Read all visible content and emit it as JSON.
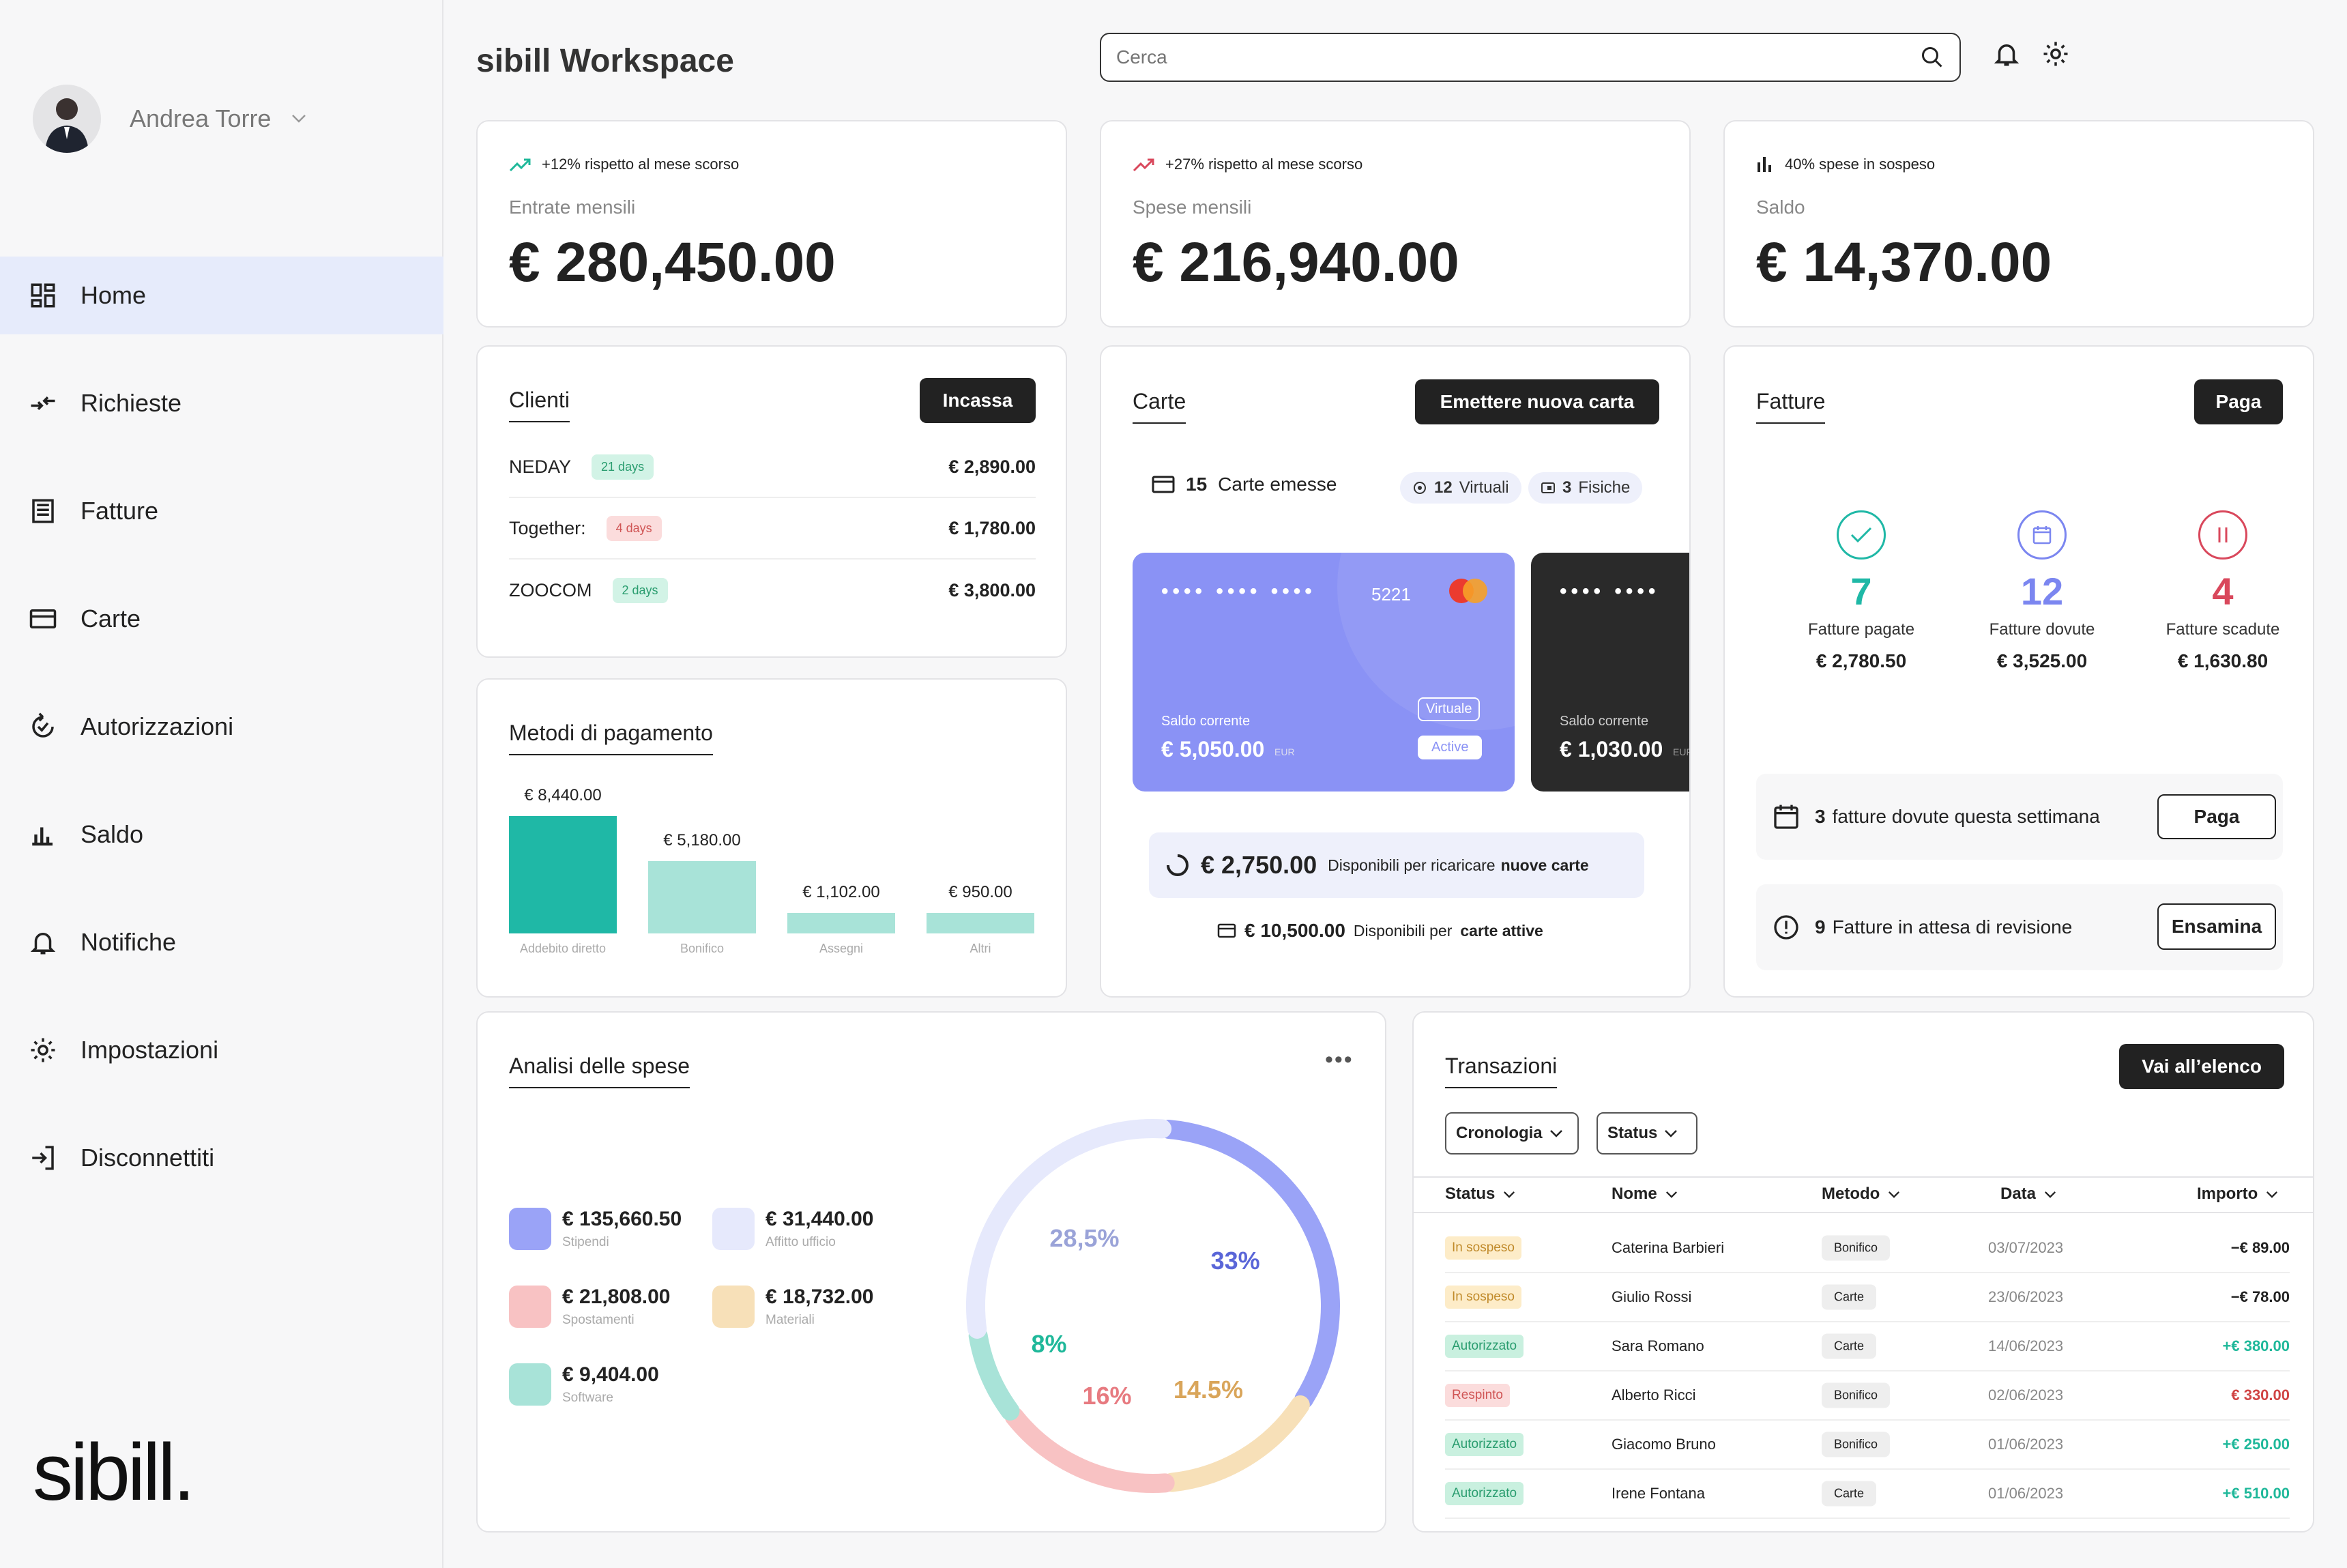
{
  "user": {
    "name": "Andrea Torre"
  },
  "nav": [
    {
      "label": "Home",
      "icon": "grid-icon"
    },
    {
      "label": "Richieste",
      "icon": "transfer-icon"
    },
    {
      "label": "Fatture",
      "icon": "invoice-icon"
    },
    {
      "label": "Carte",
      "icon": "card-icon"
    },
    {
      "label": "Autorizzazioni",
      "icon": "authorization-icon"
    },
    {
      "label": "Saldo",
      "icon": "bar-chart-icon"
    },
    {
      "label": "Notifiche",
      "icon": "bell-icon"
    },
    {
      "label": "Impostazioni",
      "icon": "gear-icon"
    },
    {
      "label": "Disconnettiti",
      "icon": "logout-icon"
    }
  ],
  "logo": "sibill.",
  "header": {
    "title": "sibill Workspace",
    "search_placeholder": "Cerca"
  },
  "kpis": [
    {
      "trend": "+12% rispetto al mese scorso",
      "label": "Entrate mensili",
      "value": "€ 280,450.00",
      "color": "#1fb89a"
    },
    {
      "trend": "+27% rispetto al mese scorso",
      "label": "Spese mensili",
      "value": "€ 216,940.00",
      "color": "#d9485c"
    },
    {
      "trend": "40% spese in sospeso",
      "label": "Saldo",
      "value": "€ 14,370.00",
      "color": "#222222"
    }
  ],
  "clients": {
    "title": "Clienti",
    "button": "Incassa",
    "rows": [
      {
        "name": "NEDAY",
        "badge": "21 days",
        "tone": "green",
        "amount": "€ 2,890.00"
      },
      {
        "name": "Together:",
        "badge": "4 days",
        "tone": "red",
        "amount": "€ 1,780.00"
      },
      {
        "name": "ZOOCOM",
        "badge": "2 days",
        "tone": "green",
        "amount": "€ 3,800.00"
      }
    ]
  },
  "payment_methods": {
    "title": "Metodi di pagamento",
    "bars": [
      {
        "label": "€ 8,440.00",
        "category": "Addebito diretto",
        "value": 8440,
        "color": "#1fb8a6"
      },
      {
        "label": "€ 5,180.00",
        "category": "Bonifico",
        "value": 5180,
        "color": "#a8e3d8"
      },
      {
        "label": "€ 1,102.00",
        "category": "Assegni",
        "value": 1102,
        "color": "#a8e3d8"
      },
      {
        "label": "€ 950.00",
        "category": "Altri",
        "value": 950,
        "color": "#a8e3d8"
      }
    ]
  },
  "cards": {
    "title": "Carte",
    "button": "Emettere nuova carta",
    "issued_count": "15",
    "issued_label": "Carte emesse",
    "virtual_count": "12",
    "virtual_label": "Virtuali",
    "physical_count": "3",
    "physical_label": "Fisiche",
    "card1": {
      "mask": "•••• •••• ••••",
      "last4": "5221",
      "balance_label": "Saldo corrente",
      "balance": "€ 5,050.00",
      "currency": "EUR",
      "tag1": "Virtuale",
      "tag2": "Active"
    },
    "card2": {
      "mask": "•••• ••••",
      "balance_label": "Saldo corrente",
      "balance": "€ 1,030.00",
      "currency": "EUR"
    },
    "topup": {
      "amount": "€ 2,750.00",
      "text1": "Disponibili per ricaricare",
      "text2": "nuove carte"
    },
    "active": {
      "amount": "€ 10,500.00",
      "text1": "Disponibili per",
      "text2": "carte attive"
    }
  },
  "invoices": {
    "title": "Fatture",
    "button": "Paga",
    "cols": [
      {
        "num": "7",
        "caption": "Fatture pagate",
        "amount": "€ 2,780.50",
        "color": "#1fb8a6",
        "icon": "check-icon"
      },
      {
        "num": "12",
        "caption": "Fatture dovute",
        "amount": "€ 3,525.00",
        "color": "#7b86f0",
        "icon": "calendar-icon"
      },
      {
        "num": "4",
        "caption": "Fatture scadute",
        "amount": "€ 1,630.80",
        "color": "#d9485c",
        "icon": "pause-icon"
      }
    ],
    "notice1": {
      "count": "3",
      "text": "fatture dovute questa settimana",
      "button": "Paga"
    },
    "notice2": {
      "count": "9",
      "text": "Fatture in attesa di revisione",
      "button": "Ensamina"
    }
  },
  "spending": {
    "title": "Analisi delle spese",
    "legend": [
      {
        "value": "€ 135,660.50",
        "label": "Stipendi",
        "color": "#9aa3f7"
      },
      {
        "value": "€ 31,440.00",
        "label": "Affitto ufficio",
        "color": "#e6e9fc"
      },
      {
        "value": "€ 21,808.00",
        "label": "Spostamenti",
        "color": "#f8c2c3"
      },
      {
        "value": "€ 18,732.00",
        "label": "Materiali",
        "color": "#f7e0b8"
      },
      {
        "value": "€ 9,404.00",
        "label": "Software",
        "color": "#a8e3d8"
      }
    ],
    "chart_data": {
      "type": "pie",
      "categories": [
        "Stipendi",
        "Affitto ufficio",
        "Spostamenti",
        "Materiali",
        "Software"
      ],
      "values": [
        33,
        28.5,
        16,
        14.5,
        8
      ],
      "labels": [
        "33%",
        "28,5%",
        "16%",
        "14.5%",
        "8%"
      ],
      "label_colors": [
        "#5a66d8",
        "#9aa3d8",
        "#e77a80",
        "#d9a55a",
        "#1fb89a"
      ]
    }
  },
  "transactions": {
    "title": "Transazioni",
    "button": "Vai all’elenco",
    "filter1": "Cronologia",
    "filter2": "Status",
    "headers": [
      "Status",
      "Nome",
      "Metodo",
      "Data",
      "Importo"
    ],
    "rows": [
      {
        "status": "In sospeso",
        "tone": "pend",
        "name": "Caterina Barbieri",
        "method": "Bonifico",
        "date": "03/07/2023",
        "amount": "−€ 89.00",
        "atone": "neg"
      },
      {
        "status": "In sospeso",
        "tone": "pend",
        "name": "Giulio Rossi",
        "method": "Carte",
        "date": "23/06/2023",
        "amount": "−€ 78.00",
        "atone": "neg"
      },
      {
        "status": "Autorizzato",
        "tone": "auth",
        "name": "Sara Romano",
        "method": "Carte",
        "date": "14/06/2023",
        "amount": "+€ 380.00",
        "atone": "pos"
      },
      {
        "status": "Respinto",
        "tone": "rej",
        "name": "Alberto Ricci",
        "method": "Bonifico",
        "date": "02/06/2023",
        "amount": "€ 330.00",
        "atone": "red"
      },
      {
        "status": "Autorizzato",
        "tone": "auth",
        "name": "Giacomo Bruno",
        "method": "Bonifico",
        "date": "01/06/2023",
        "amount": "+€ 250.00",
        "atone": "pos"
      },
      {
        "status": "Autorizzato",
        "tone": "auth",
        "name": "Irene Fontana",
        "method": "Carte",
        "date": "01/06/2023",
        "amount": "+€ 510.00",
        "atone": "pos"
      }
    ]
  }
}
